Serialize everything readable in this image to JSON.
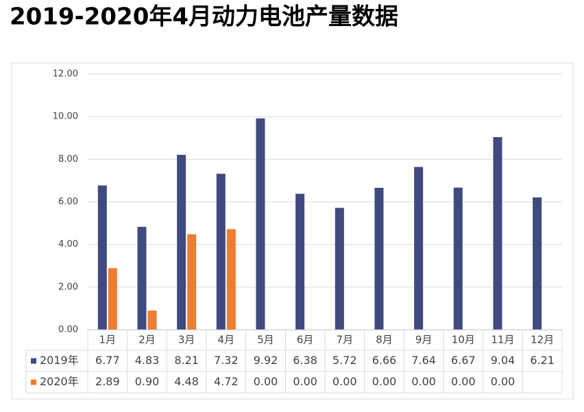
{
  "chart_data": {
    "type": "bar",
    "title": "2019-2020年4月动力电池产量数据",
    "categories": [
      "1月",
      "2月",
      "3月",
      "4月",
      "5月",
      "6月",
      "7月",
      "8月",
      "9月",
      "10月",
      "11月",
      "12月"
    ],
    "series": [
      {
        "name": "2019年",
        "color": "#3f4a7f",
        "values": [
          6.77,
          4.83,
          8.21,
          7.32,
          9.92,
          6.38,
          5.72,
          6.66,
          7.64,
          6.67,
          9.04,
          6.21
        ]
      },
      {
        "name": "2020年",
        "color": "#ed7d31",
        "values": [
          2.89,
          0.9,
          4.48,
          4.72,
          0,
          0,
          0,
          0,
          0,
          0,
          0,
          null
        ],
        "value_labels": [
          "2.89",
          "0.90",
          "4.48",
          "4.72",
          "0.00",
          "0.00",
          "0.00",
          "0.00",
          "0.00",
          "0.00",
          "0.00",
          null
        ]
      }
    ],
    "ylim": [
      0,
      12
    ],
    "yticks": [
      {
        "value": 0,
        "label": "0.00"
      },
      {
        "value": 2,
        "label": "2.00"
      },
      {
        "value": 4,
        "label": "4.00"
      },
      {
        "value": 6,
        "label": "6.00"
      },
      {
        "value": 8,
        "label": "8.00"
      },
      {
        "value": 10,
        "label": "10.00"
      },
      {
        "value": 12,
        "label": "12.00"
      }
    ],
    "grid": true,
    "legend": "data-table"
  }
}
